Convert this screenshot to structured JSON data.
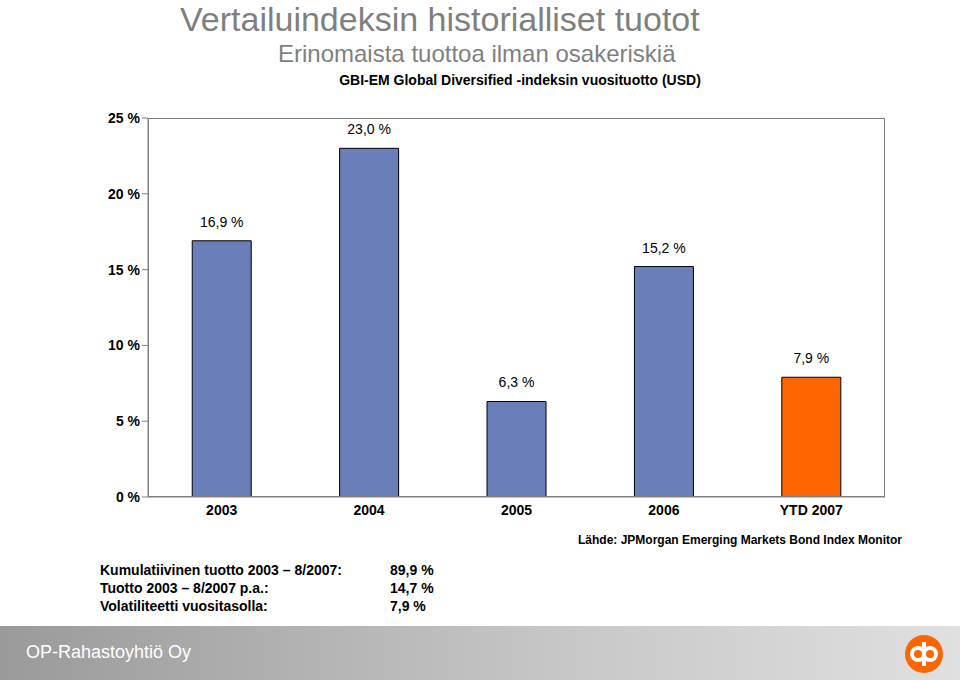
{
  "title": "Vertailuindeksin historialliset tuotot",
  "subtitle": "Erinomaista tuottoa ilman osakeriskiä",
  "chart_data": {
    "type": "bar",
    "title": "GBI-EM Global Diversified -indeksin vuosituotto (USD)",
    "categories": [
      "2003",
      "2004",
      "2005",
      "2006",
      "YTD 2007"
    ],
    "values": [
      16.9,
      23.0,
      6.3,
      15.2,
      7.9
    ],
    "value_labels": [
      "16,9 %",
      "23,0 %",
      "6,3 %",
      "15,2 %",
      "7,9 %"
    ],
    "colors": [
      "#6a7fb9",
      "#6a7fb9",
      "#6a7fb9",
      "#6a7fb9",
      "#ff6600"
    ],
    "ylim": [
      0,
      25
    ],
    "yticks": [
      {
        "value": 0,
        "label": "0 %"
      },
      {
        "value": 5,
        "label": "5 %"
      },
      {
        "value": 10,
        "label": "10 %"
      },
      {
        "value": 15,
        "label": "15 %"
      },
      {
        "value": 20,
        "label": "20 %"
      },
      {
        "value": 25,
        "label": "25 %"
      }
    ],
    "grid": false,
    "data_labels": true,
    "source": "Lähde: JPMorgan Emerging Markets Bond Index Monitor"
  },
  "annotations": [
    {
      "label": "Kumulatiivinen tuotto 2003 – 8/2007:",
      "value": "89,9 %"
    },
    {
      "label": "Tuotto 2003 – 8/2007 p.a.:",
      "value": "14,7 %"
    },
    {
      "label": "Volatiliteetti vuositasolla:",
      "value": "7,9 %"
    }
  ],
  "footer": "OP-Rahastoyhtiö Oy"
}
